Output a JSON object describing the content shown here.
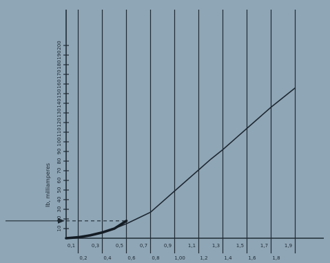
{
  "chart_data": {
    "type": "line",
    "title": "",
    "xlabel": "",
    "ylabel": "Ib, milliamperes",
    "xlim": [
      0,
      2.0
    ],
    "ylim": [
      0,
      200
    ],
    "x_ticks_upper": [
      "0,1",
      "0,3",
      "0,5",
      "0,7",
      "0,9",
      "1,1",
      "1,3",
      "1,5",
      "1,7",
      "1,9"
    ],
    "x_ticks_lower": [
      "0,2",
      "0,4",
      "0,6",
      "0,8",
      "1,00",
      "1,2",
      "1,4",
      "1,6",
      "1,8"
    ],
    "y_ticks": [
      "10",
      "20",
      "30",
      "40",
      "50",
      "60",
      "70",
      "80",
      "90",
      "100",
      "110",
      "120",
      "130",
      "140",
      "150",
      "160",
      "170",
      "180",
      "190",
      "200"
    ],
    "gridlines": [
      0.1,
      0.3,
      0.5,
      0.7,
      0.9,
      1.1,
      1.3,
      1.5,
      1.7,
      1.9
    ],
    "grid": true,
    "series": [
      {
        "x": [
          0.0,
          0.1,
          0.2,
          0.3,
          0.4,
          0.5,
          0.6,
          0.7,
          0.8,
          0.9,
          1.0,
          1.1,
          1.2,
          1.3,
          1.4,
          1.5,
          1.6,
          1.7,
          1.8,
          1.9
        ],
        "y": [
          0,
          1,
          3,
          6,
          10,
          15,
          21,
          27,
          38,
          49,
          60,
          71,
          82,
          92,
          103,
          114,
          125,
          136,
          146,
          156
        ]
      }
    ],
    "highlight_segment": {
      "x": [
        0.0,
        0.5
      ],
      "y": [
        0,
        18
      ]
    },
    "reference_line": {
      "y": 18,
      "x_end": 0.5
    }
  }
}
